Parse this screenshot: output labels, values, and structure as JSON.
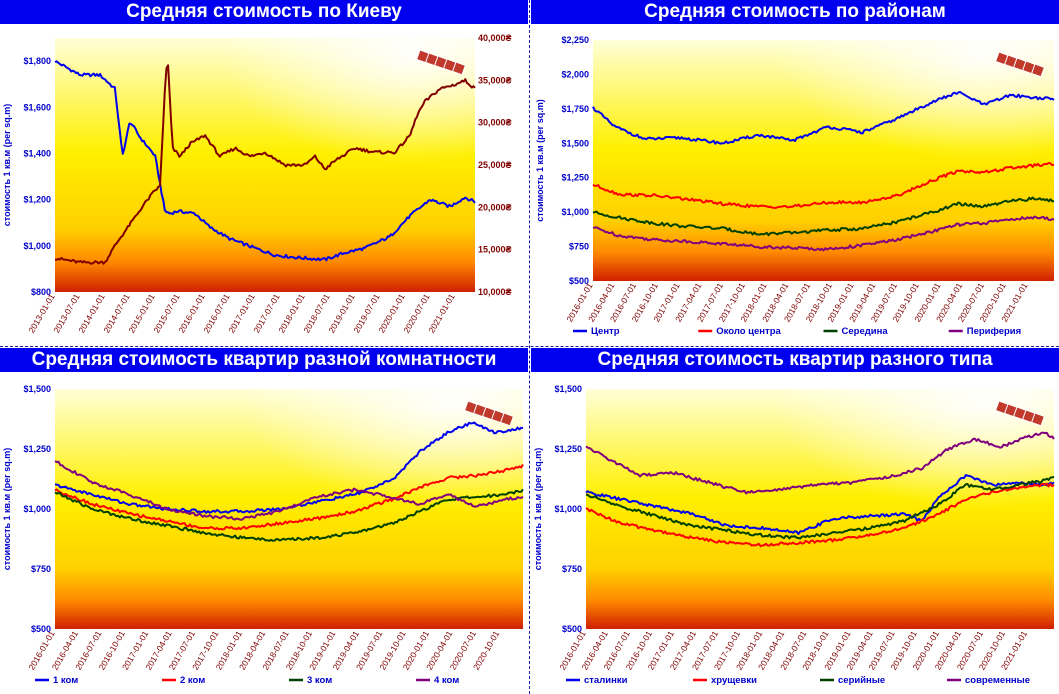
{
  "chart_data": [
    {
      "type": "line",
      "title": "Средняя стоимость по Киеву",
      "ylabel": "стоимость 1 кв.м (per sq.m)",
      "ylim": [
        800,
        1900
      ],
      "y2lim": [
        10000,
        40000
      ],
      "yticks": [
        "$800",
        "$1,000",
        "$1,200",
        "$1,400",
        "$1,600",
        "$1,800"
      ],
      "y2ticks": [
        "10,000₴",
        "15,000₴",
        "20,000₴",
        "25,000₴",
        "30,000₴",
        "35,000₴",
        "40,000₴"
      ],
      "x_ticks": [
        "2013-01-01",
        "2013-07-01",
        "2014-01-01",
        "2014-07-01",
        "2015-01-01",
        "2015-07-01",
        "2016-01-01",
        "2016-07-01",
        "2017-01-01",
        "2017-07-01",
        "2018-01-01",
        "2018-07-01",
        "2019-01-01",
        "2019-07-01",
        "2020-01-01",
        "2020-07-01",
        "2021-01-01"
      ],
      "series": [
        {
          "axis": "left",
          "color": "#0000ee",
          "x": [
            2013.0,
            2013.5,
            2013.9,
            2014.2,
            2014.35,
            2014.5,
            2014.7,
            2015.0,
            2015.2,
            2015.3,
            2015.45,
            2015.8,
            2016.1,
            2016.5,
            2017.0,
            2017.4,
            2017.8,
            2018.1,
            2018.4,
            2018.8,
            2019.2,
            2019.7,
            2020.1,
            2020.5,
            2020.9,
            2021.2,
            2021.4
          ],
          "values": [
            1800,
            1740,
            1740,
            1680,
            1390,
            1540,
            1470,
            1390,
            1150,
            1140,
            1150,
            1140,
            1080,
            1030,
            990,
            960,
            950,
            945,
            940,
            970,
            990,
            1040,
            1130,
            1200,
            1170,
            1210,
            1190
          ]
        },
        {
          "axis": "right",
          "color": "#800000",
          "x": [
            2013.0,
            2013.5,
            2014.0,
            2014.2,
            2014.5,
            2014.8,
            2015.0,
            2015.1,
            2015.2,
            2015.25,
            2015.35,
            2015.5,
            2015.7,
            2016.0,
            2016.3,
            2016.6,
            2016.9,
            2017.2,
            2017.6,
            2018.0,
            2018.2,
            2018.4,
            2018.6,
            2019.0,
            2019.4,
            2019.8,
            2020.1,
            2020.25,
            2020.4,
            2020.7,
            2021.0,
            2021.2,
            2021.4
          ],
          "values": [
            14000,
            13500,
            13500,
            15500,
            18000,
            20500,
            22000,
            22500,
            34000,
            38000,
            27000,
            26000,
            27500,
            28500,
            26000,
            27000,
            26000,
            26500,
            25000,
            25000,
            26000,
            24500,
            25500,
            27000,
            26500,
            26500,
            28500,
            31000,
            32500,
            34000,
            34500,
            35000,
            34000
          ]
        }
      ]
    },
    {
      "type": "line",
      "title": "Средняя стоимость по районам",
      "ylabel": "стоимость 1 кв.м (per sq.m)",
      "ylim": [
        500,
        2250
      ],
      "yticks": [
        "$500",
        "$750",
        "$1,000",
        "$1,250",
        "$1,500",
        "$1,750",
        "$2,000",
        "$2,250"
      ],
      "x_ticks": [
        "2016-01-01",
        "2016-04-01",
        "2016-07-01",
        "2016-10-01",
        "2017-01-01",
        "2017-04-01",
        "2017-07-01",
        "2017-10-01",
        "2018-01-01",
        "2018-04-01",
        "2018-07-01",
        "2018-10-01",
        "2019-01-01",
        "2019-04-01",
        "2019-07-01",
        "2019-10-01",
        "2020-01-01",
        "2020-04-01",
        "2020-07-01",
        "2020-10-01",
        "2021-01-01"
      ],
      "series": [
        {
          "name": "Центр",
          "color": "#0000ee",
          "x": [
            2016.0,
            2016.25,
            2016.6,
            2017.0,
            2017.5,
            2017.9,
            2018.3,
            2018.7,
            2019.1,
            2019.5,
            2019.9,
            2020.2,
            2020.5,
            2020.8,
            2021.1,
            2021.3
          ],
          "values": [
            1760,
            1620,
            1530,
            1540,
            1500,
            1560,
            1520,
            1620,
            1580,
            1680,
            1800,
            1870,
            1780,
            1850,
            1830,
            1820
          ]
        },
        {
          "name": "Около центра",
          "color": "#ff0000",
          "x": [
            2016.0,
            2016.3,
            2016.7,
            2017.0,
            2017.5,
            2017.9,
            2018.3,
            2018.7,
            2019.1,
            2019.5,
            2019.9,
            2020.2,
            2020.5,
            2020.8,
            2021.1,
            2021.3
          ],
          "values": [
            1200,
            1130,
            1120,
            1100,
            1060,
            1040,
            1040,
            1070,
            1070,
            1120,
            1230,
            1300,
            1290,
            1320,
            1340,
            1350
          ]
        },
        {
          "name": "Середина",
          "color": "#004000",
          "x": [
            2016.0,
            2016.3,
            2016.7,
            2017.0,
            2017.5,
            2017.9,
            2018.3,
            2018.7,
            2019.1,
            2019.5,
            2019.9,
            2020.2,
            2020.5,
            2020.8,
            2021.1,
            2021.3
          ],
          "values": [
            1000,
            960,
            920,
            900,
            880,
            840,
            850,
            870,
            880,
            930,
            1000,
            1060,
            1040,
            1080,
            1100,
            1080
          ]
        },
        {
          "name": "Периферия",
          "color": "#800080",
          "x": [
            2016.0,
            2016.3,
            2016.7,
            2017.0,
            2017.5,
            2017.9,
            2018.3,
            2018.7,
            2019.1,
            2019.5,
            2019.9,
            2020.2,
            2020.5,
            2020.8,
            2021.1,
            2021.3
          ],
          "values": [
            890,
            830,
            800,
            790,
            770,
            750,
            740,
            730,
            760,
            800,
            860,
            910,
            920,
            950,
            960,
            950
          ]
        }
      ]
    },
    {
      "type": "line",
      "title": "Средняя стоимость квартир разной комнатности",
      "ylabel": "стоимость 1 кв.м (per sq.m)",
      "ylim": [
        500,
        1500
      ],
      "yticks": [
        "$500",
        "$750",
        "$1,000",
        "$1,250",
        "$1,500"
      ],
      "x_ticks": [
        "2016-01-01",
        "2016-04-01",
        "2016-07-01",
        "2016-10-01",
        "2017-01-01",
        "2017-04-01",
        "2017-07-01",
        "2017-10-01",
        "2018-01-01",
        "2018-04-01",
        "2018-07-01",
        "2018-10-01",
        "2019-01-01",
        "2019-04-01",
        "2019-07-01",
        "2019-10-01",
        "2020-01-01",
        "2020-04-01",
        "2020-07-01",
        "2020-10-01"
      ],
      "series": [
        {
          "name": "1 ком",
          "color": "#0000ee",
          "x": [
            2016.0,
            2016.4,
            2016.8,
            2017.2,
            2017.6,
            2018.0,
            2018.4,
            2018.8,
            2019.2,
            2019.6,
            2019.9,
            2020.2,
            2020.45,
            2020.7,
            2020.9,
            2021.0
          ],
          "values": [
            1100,
            1060,
            1020,
            1000,
            990,
            990,
            1000,
            1030,
            1060,
            1120,
            1240,
            1320,
            1360,
            1320,
            1330,
            1340
          ]
        },
        {
          "name": "2 ком",
          "color": "#ff0000",
          "x": [
            2016.0,
            2016.4,
            2016.8,
            2017.2,
            2017.6,
            2018.0,
            2018.4,
            2018.8,
            2019.2,
            2019.6,
            2019.9,
            2020.2,
            2020.5,
            2020.8,
            2021.0
          ],
          "values": [
            1080,
            1020,
            980,
            950,
            920,
            920,
            940,
            960,
            990,
            1040,
            1090,
            1130,
            1140,
            1160,
            1180
          ]
        },
        {
          "name": "3 ком",
          "color": "#004000",
          "x": [
            2016.0,
            2016.4,
            2016.8,
            2017.2,
            2017.6,
            2018.0,
            2018.4,
            2018.8,
            2019.2,
            2019.6,
            2019.9,
            2020.2,
            2020.5,
            2020.8,
            2021.0
          ],
          "values": [
            1070,
            1000,
            960,
            930,
            900,
            880,
            870,
            880,
            900,
            940,
            990,
            1040,
            1050,
            1060,
            1080
          ]
        },
        {
          "name": "4 ком",
          "color": "#800080",
          "x": [
            2016.0,
            2016.4,
            2016.8,
            2017.2,
            2017.6,
            2018.0,
            2018.4,
            2018.8,
            2019.2,
            2019.6,
            2019.9,
            2020.2,
            2020.5,
            2020.8,
            2021.0
          ],
          "values": [
            1200,
            1110,
            1060,
            1000,
            970,
            960,
            990,
            1050,
            1080,
            1050,
            1020,
            1060,
            1010,
            1040,
            1050
          ]
        }
      ]
    },
    {
      "type": "line",
      "title": "Средняя стоимость квартир разного типа",
      "ylabel": "стоимость 1 кв.м (per sq.m)",
      "ylim": [
        500,
        1500
      ],
      "yticks": [
        "$500",
        "$750",
        "$1,000",
        "$1,250",
        "$1,500"
      ],
      "x_ticks": [
        "2016-01-01",
        "2016-04-01",
        "2016-07-01",
        "2016-10-01",
        "2017-01-01",
        "2017-04-01",
        "2017-07-01",
        "2017-10-01",
        "2018-01-01",
        "2018-04-01",
        "2018-07-01",
        "2018-10-01",
        "2019-01-01",
        "2019-04-01",
        "2019-07-01",
        "2019-10-01",
        "2020-01-01",
        "2020-04-01",
        "2020-07-01",
        "2020-10-01",
        "2021-01-01"
      ],
      "series": [
        {
          "name": "сталинки",
          "color": "#0000ee",
          "x": [
            2016.0,
            2016.4,
            2016.8,
            2017.2,
            2017.6,
            2018.0,
            2018.4,
            2018.8,
            2019.2,
            2019.6,
            2019.8,
            2020.0,
            2020.3,
            2020.6,
            2020.9,
            2021.2,
            2021.3
          ],
          "values": [
            1070,
            1040,
            1010,
            980,
            930,
            920,
            900,
            960,
            970,
            980,
            950,
            1050,
            1140,
            1100,
            1110,
            1100,
            1110
          ]
        },
        {
          "name": "хрущевки",
          "color": "#ff0000",
          "x": [
            2016.0,
            2016.4,
            2016.8,
            2017.2,
            2017.6,
            2018.0,
            2018.4,
            2018.8,
            2019.2,
            2019.6,
            2020.0,
            2020.3,
            2020.6,
            2020.9,
            2021.2,
            2021.3
          ],
          "values": [
            1000,
            940,
            910,
            880,
            860,
            850,
            860,
            870,
            890,
            920,
            980,
            1040,
            1070,
            1090,
            1100,
            1100
          ]
        },
        {
          "name": "серийные",
          "color": "#004000",
          "x": [
            2016.0,
            2016.4,
            2016.8,
            2017.2,
            2017.6,
            2018.0,
            2018.4,
            2018.8,
            2019.2,
            2019.6,
            2020.0,
            2020.3,
            2020.6,
            2020.9,
            2021.2,
            2021.3
          ],
          "values": [
            1060,
            1010,
            970,
            930,
            910,
            890,
            880,
            900,
            920,
            950,
            1020,
            1100,
            1080,
            1100,
            1120,
            1130
          ]
        },
        {
          "name": "современные",
          "color": "#800080",
          "x": [
            2016.0,
            2016.3,
            2016.6,
            2017.0,
            2017.4,
            2017.8,
            2018.2,
            2018.6,
            2019.0,
            2019.4,
            2019.8,
            2020.1,
            2020.4,
            2020.7,
            2021.0,
            2021.2,
            2021.3
          ],
          "values": [
            1260,
            1200,
            1140,
            1150,
            1110,
            1070,
            1080,
            1100,
            1110,
            1130,
            1170,
            1250,
            1290,
            1260,
            1300,
            1320,
            1290
          ]
        }
      ]
    }
  ]
}
